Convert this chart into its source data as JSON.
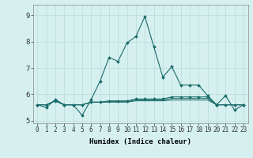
{
  "xlabel": "Humidex (Indice chaleur)",
  "bg_color": "#d6f0f0",
  "grid_color": "#c0dede",
  "line_color": "#1a6b6b",
  "xlim": [
    -0.5,
    23.5
  ],
  "ylim": [
    4.9,
    9.4
  ],
  "yticks": [
    5,
    6,
    7,
    8,
    9
  ],
  "xticks": [
    0,
    1,
    2,
    3,
    4,
    5,
    6,
    7,
    8,
    9,
    10,
    11,
    12,
    13,
    14,
    15,
    16,
    17,
    18,
    19,
    20,
    21,
    22,
    23
  ],
  "lines": [
    {
      "x": [
        0,
        1,
        2,
        3,
        4,
        5,
        6,
        7,
        8,
        9,
        10,
        11,
        12,
        13,
        14,
        15,
        16,
        17,
        18,
        19,
        20,
        21,
        22,
        23
      ],
      "y": [
        5.6,
        5.5,
        5.8,
        5.6,
        5.6,
        5.2,
        5.8,
        6.5,
        7.4,
        7.25,
        7.95,
        8.2,
        8.95,
        7.8,
        6.65,
        7.05,
        6.35,
        6.35,
        6.35,
        5.95,
        5.6,
        5.95,
        5.4,
        5.6
      ],
      "marker": true
    },
    {
      "x": [
        0,
        1,
        2,
        3,
        4,
        5,
        6,
        7,
        8,
        9,
        10,
        11,
        12,
        13,
        14,
        15,
        16,
        17,
        18,
        19,
        20,
        21,
        22,
        23
      ],
      "y": [
        5.6,
        5.6,
        5.75,
        5.6,
        5.6,
        5.6,
        5.7,
        5.7,
        5.75,
        5.75,
        5.75,
        5.82,
        5.82,
        5.82,
        5.82,
        5.9,
        5.9,
        5.9,
        5.9,
        5.9,
        5.6,
        5.6,
        5.6,
        5.6
      ],
      "marker": true
    },
    {
      "x": [
        0,
        1,
        2,
        3,
        4,
        5,
        6,
        7,
        8,
        9,
        10,
        11,
        12,
        13,
        14,
        15,
        16,
        17,
        18,
        19,
        20,
        21,
        22,
        23
      ],
      "y": [
        5.6,
        5.6,
        5.75,
        5.6,
        5.6,
        5.6,
        5.7,
        5.7,
        5.72,
        5.72,
        5.72,
        5.78,
        5.78,
        5.78,
        5.78,
        5.84,
        5.84,
        5.84,
        5.84,
        5.84,
        5.6,
        5.6,
        5.6,
        5.6
      ],
      "marker": false
    },
    {
      "x": [
        0,
        1,
        2,
        3,
        4,
        5,
        6,
        7,
        8,
        9,
        10,
        11,
        12,
        13,
        14,
        15,
        16,
        17,
        18,
        19,
        20,
        21,
        22,
        23
      ],
      "y": [
        5.6,
        5.6,
        5.75,
        5.6,
        5.6,
        5.6,
        5.7,
        5.7,
        5.7,
        5.7,
        5.7,
        5.75,
        5.75,
        5.75,
        5.75,
        5.78,
        5.78,
        5.78,
        5.78,
        5.78,
        5.6,
        5.6,
        5.6,
        5.6
      ],
      "marker": false
    }
  ]
}
